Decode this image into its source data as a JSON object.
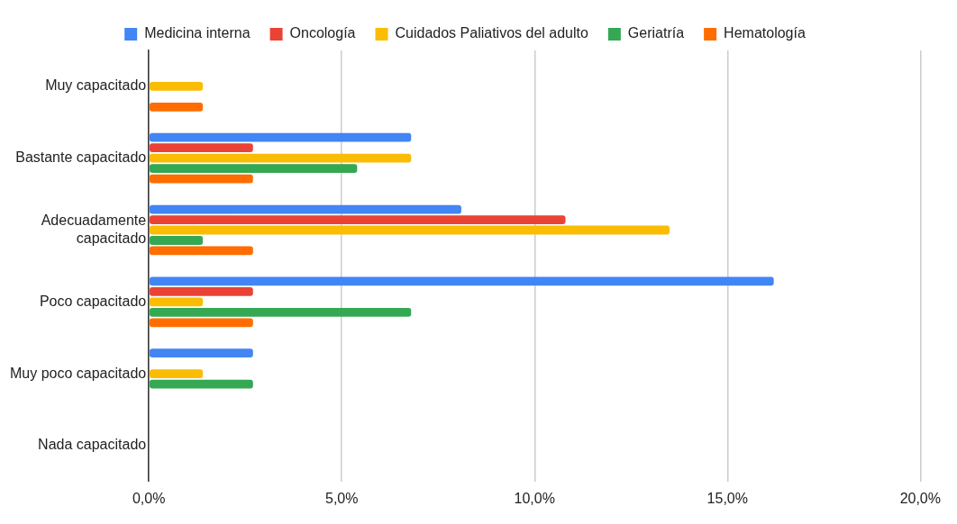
{
  "chart_data": {
    "type": "bar",
    "orientation": "horizontal",
    "categories": [
      "Muy capacitado",
      "Bastante capacitado",
      "Adecuadamente capacitado",
      "Poco capacitado",
      "Muy poco capacitado",
      "Nada capacitado"
    ],
    "series": [
      {
        "name": "Medicina interna",
        "color": "#4285f4",
        "values": [
          0,
          6.8,
          8.1,
          16.2,
          2.7,
          0
        ]
      },
      {
        "name": "Oncología",
        "color": "#ea4335",
        "values": [
          0,
          2.7,
          10.8,
          2.7,
          0,
          0
        ]
      },
      {
        "name": "Cuidados Paliativos del adulto",
        "color": "#fbbc04",
        "values": [
          1.4,
          6.8,
          13.5,
          1.4,
          1.4,
          0
        ]
      },
      {
        "name": "Geriatría",
        "color": "#34a853",
        "values": [
          0,
          5.4,
          1.4,
          6.8,
          2.7,
          0
        ]
      },
      {
        "name": "Hematología",
        "color": "#ff6d01",
        "values": [
          1.4,
          2.7,
          2.7,
          2.7,
          0,
          0
        ]
      }
    ],
    "xlim": [
      0,
      20
    ],
    "xticks": [
      {
        "value": 0,
        "label": "0,0%"
      },
      {
        "value": 5,
        "label": "5,0%"
      },
      {
        "value": 10,
        "label": "10,0%"
      },
      {
        "value": 15,
        "label": "15,0%"
      },
      {
        "value": 20,
        "label": "20,0%"
      }
    ],
    "grid": "x",
    "legend": "top"
  }
}
